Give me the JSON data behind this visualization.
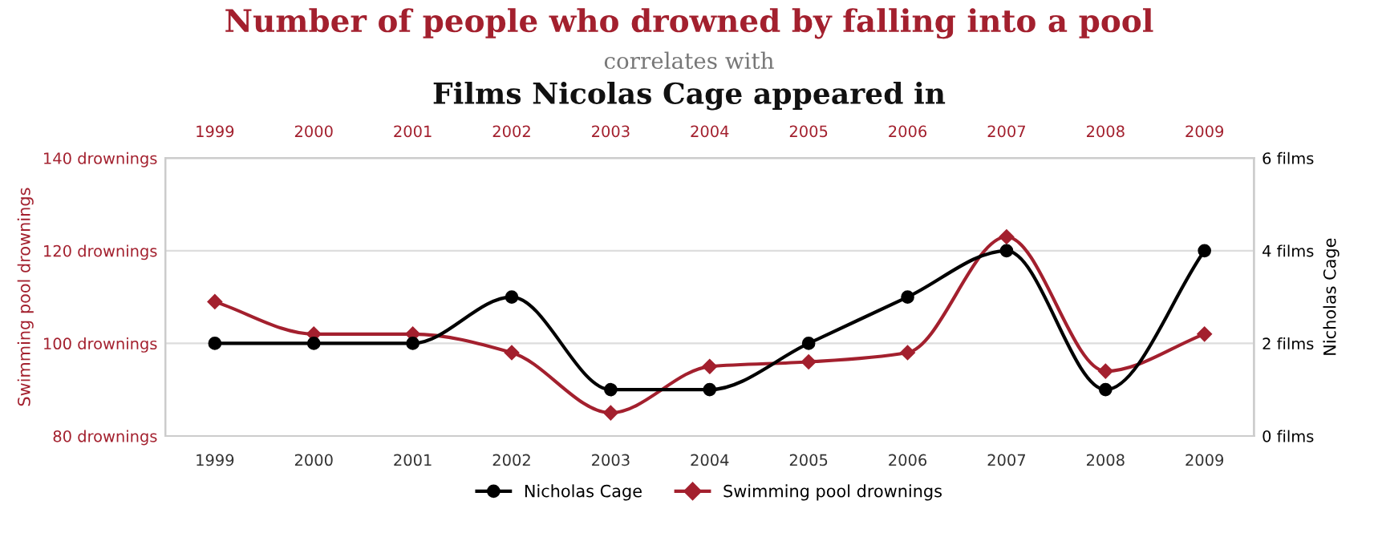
{
  "chart_data": {
    "type": "line",
    "title": "Number of people who drowned by falling into a pool",
    "subtitle": "correlates with",
    "annotations": [
      "Films Nicolas Cage appeared in"
    ],
    "categories": [
      "1999",
      "2000",
      "2001",
      "2002",
      "2003",
      "2004",
      "2005",
      "2006",
      "2007",
      "2008",
      "2009"
    ],
    "series": [
      {
        "name": "Nicholas Cage",
        "color": "#000000",
        "axis": "y2",
        "marker": "circle",
        "values": [
          2,
          2,
          2,
          3,
          1,
          1,
          2,
          3,
          4,
          1,
          4
        ]
      },
      {
        "name": "Swimming pool drownings",
        "color": "#a3202e",
        "marker": "diamond",
        "values": [
          109,
          102,
          102,
          98,
          85,
          95,
          96,
          98,
          123,
          94,
          102
        ]
      }
    ],
    "ylabel": "Swimming pool drownings",
    "y2label": "Nicholas Cage",
    "ylim": [
      80,
      140
    ],
    "yticks": [
      {
        "value": 80,
        "label": "80 drownings"
      },
      {
        "value": 100,
        "label": "100 drownings"
      },
      {
        "value": 120,
        "label": "120 drownings"
      },
      {
        "value": 140,
        "label": "140 drownings"
      }
    ],
    "y2lim": [
      0,
      6
    ],
    "y2ticks": [
      {
        "value": 0,
        "label": "0 films"
      },
      {
        "value": 2,
        "label": "2 films"
      },
      {
        "value": 4,
        "label": "4 films"
      },
      {
        "value": 6,
        "label": "6 films"
      }
    ],
    "grid": "y",
    "legend": "bottom",
    "line_style": "solid"
  }
}
